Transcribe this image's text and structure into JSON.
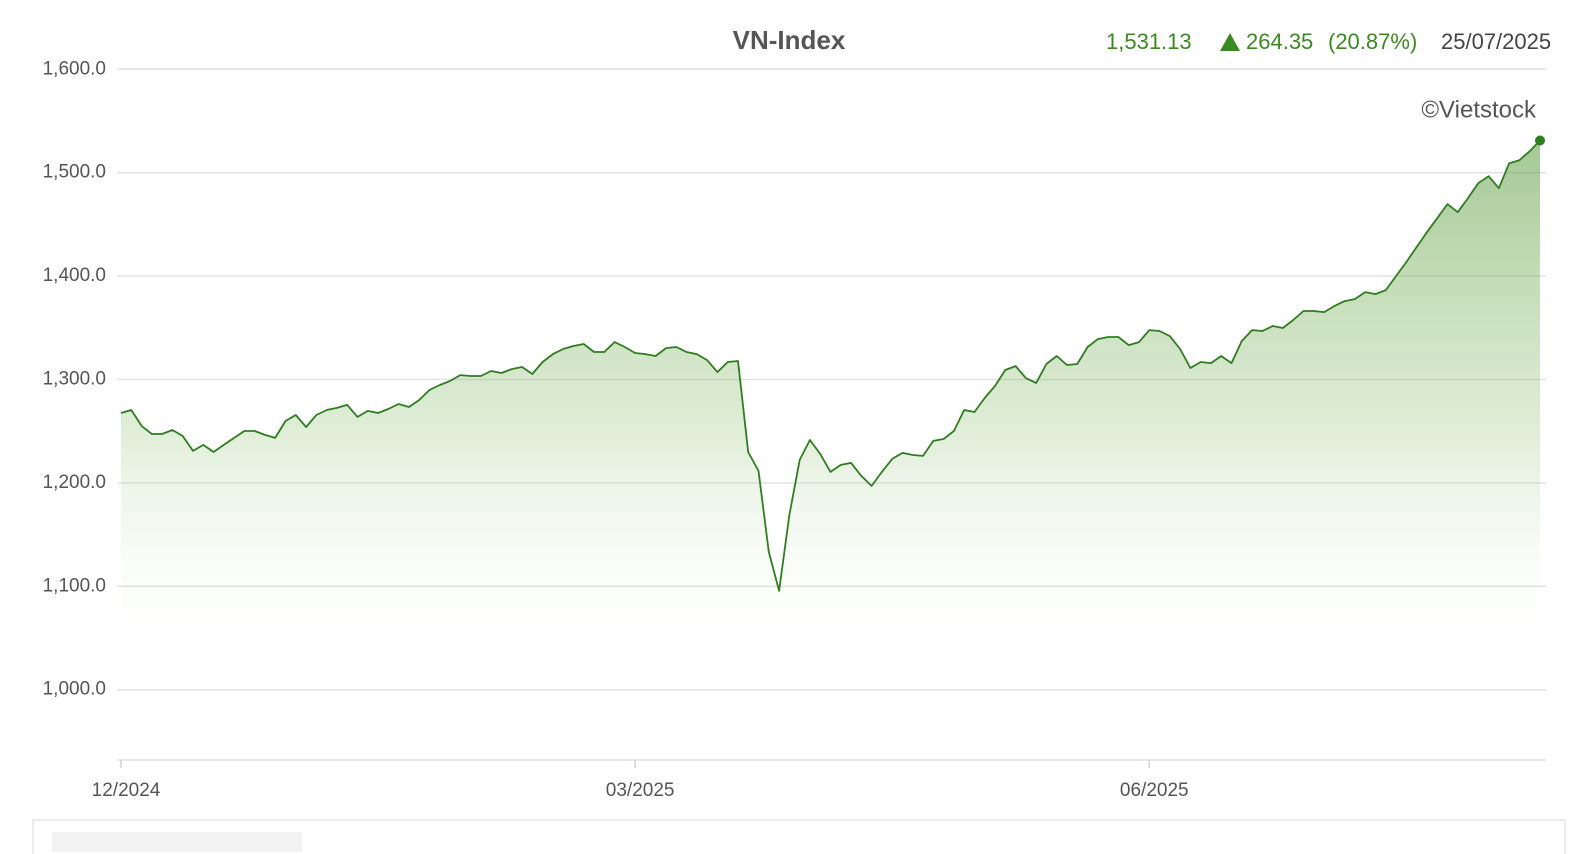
{
  "chart_data": {
    "type": "line",
    "title": "VN-Index",
    "last": "1,531.13",
    "change": "264.35",
    "change_pct": "(20.87%)",
    "date": "25/07/2025",
    "credit": "©Vietstock",
    "color": "#2e7d1e",
    "grid": true,
    "ylim": [
      932,
      1609
    ],
    "yticks": [
      {
        "value": 1000,
        "label": "1,000.0"
      },
      {
        "value": 1100,
        "label": "1,100.0"
      },
      {
        "value": 1200,
        "label": "1,200.0"
      },
      {
        "value": 1300,
        "label": "1,300.0"
      },
      {
        "value": 1400,
        "label": "1,400.0"
      },
      {
        "value": 1500,
        "label": "1,500.0"
      },
      {
        "value": 1600,
        "label": "1,600.0"
      }
    ],
    "categories": [
      "12/2024",
      null,
      null,
      null,
      null,
      null,
      null,
      null,
      null,
      null,
      null,
      null,
      null,
      null,
      null,
      null,
      null,
      null,
      null,
      null,
      null,
      null,
      null,
      null,
      null,
      null,
      null,
      null,
      null,
      null,
      null,
      null,
      null,
      null,
      null,
      null,
      null,
      null,
      null,
      null,
      null,
      null,
      null,
      null,
      null,
      null,
      null,
      null,
      null,
      null,
      "03/2025",
      null,
      null,
      null,
      null,
      null,
      null,
      null,
      null,
      null,
      null,
      null,
      null,
      null,
      null,
      null,
      null,
      null,
      null,
      null,
      null,
      null,
      null,
      null,
      null,
      null,
      null,
      null,
      null,
      null,
      null,
      null,
      null,
      null,
      null,
      null,
      null,
      null,
      null,
      null,
      null,
      null,
      null,
      null,
      null,
      null,
      null,
      null,
      null,
      null,
      "06/2025",
      null,
      null,
      null,
      null,
      null,
      null,
      null,
      null,
      null,
      null,
      null,
      null,
      null,
      null,
      null,
      null,
      null,
      null,
      null,
      null,
      null,
      null,
      null,
      null,
      null,
      null,
      null,
      null,
      null,
      null,
      null,
      null,
      null,
      null,
      null,
      null,
      null,
      null
    ],
    "values": [
      1267.6,
      1270.5,
      1255.1,
      1247.3,
      1247.3,
      1251.2,
      1245.4,
      1230.9,
      1236.7,
      1229.9,
      1236.7,
      1243.5,
      1250.2,
      1250.2,
      1246.4,
      1243.5,
      1259.9,
      1265.7,
      1254.1,
      1265.7,
      1270.5,
      1272.5,
      1275.4,
      1263.8,
      1269.6,
      1267.6,
      1271.5,
      1276.3,
      1273.4,
      1280.2,
      1289.8,
      1294.7,
      1298.5,
      1304.3,
      1303.4,
      1303.4,
      1308.2,
      1306.3,
      1310.1,
      1312.1,
      1305.3,
      1316.9,
      1324.6,
      1329.5,
      1332.4,
      1334.3,
      1326.6,
      1326.6,
      1336.2,
      1331.4,
      1325.6,
      1324.6,
      1322.7,
      1330.4,
      1331.4,
      1326.6,
      1324.6,
      1318.8,
      1307.2,
      1316.9,
      1317.9,
      1229.9,
      1211.6,
      1133.3,
      1095.6,
      1169.1,
      1222.2,
      1241.5,
      1228,
      1210.6,
      1217.4,
      1219.3,
      1206.8,
      1197.1,
      1210.6,
      1223.2,
      1229,
      1227,
      1226.1,
      1240.6,
      1242.5,
      1250.2,
      1270.5,
      1268.6,
      1282.1,
      1293.7,
      1309.2,
      1313,
      1301.4,
      1296.6,
      1315,
      1322.7,
      1314,
      1315,
      1331.4,
      1339.1,
      1341.1,
      1341.1,
      1333.3,
      1336.2,
      1347.8,
      1346.9,
      1342,
      1329.5,
      1311.1,
      1316.9,
      1315.9,
      1322.7,
      1315.9,
      1337.2,
      1347.8,
      1346.9,
      1351.7,
      1349.8,
      1357.5,
      1366.2,
      1366.2,
      1365.2,
      1371,
      1375.8,
      1377.8,
      1384.5,
      1382.6,
      1386.5,
      1400,
      1413.5,
      1428,
      1442.5,
      1456,
      1469.6,
      1461.8,
      1475.4,
      1489.9,
      1496.6,
      1485,
      1509.2,
      1512.1,
      1520.8,
      1531.13
    ]
  }
}
